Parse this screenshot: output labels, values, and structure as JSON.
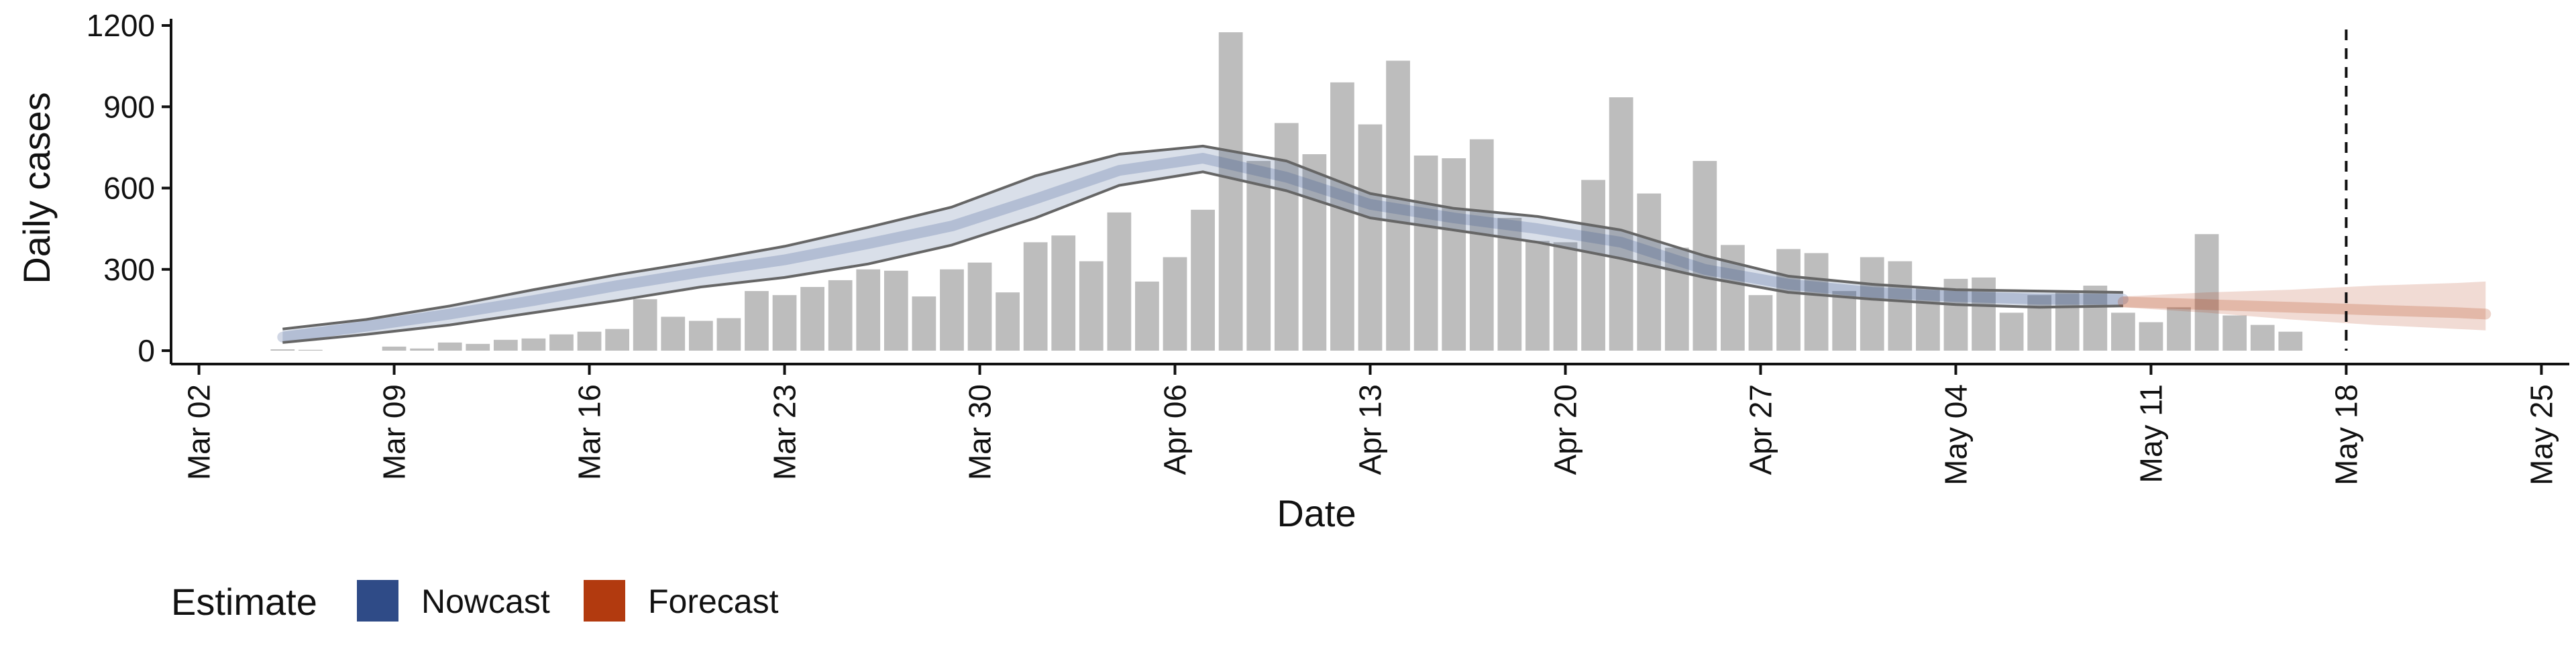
{
  "chart_data": {
    "type": "bar",
    "xlabel": "Date",
    "ylabel": "Daily cases",
    "ylim": [
      0,
      1200
    ],
    "yticks": [
      0,
      300,
      600,
      900,
      1200
    ],
    "xlim": [
      "2020-03-01",
      "2020-05-26"
    ],
    "xticks": [
      {
        "date": "2020-03-02",
        "label": "Mar 02"
      },
      {
        "date": "2020-03-09",
        "label": "Mar 09"
      },
      {
        "date": "2020-03-16",
        "label": "Mar 16"
      },
      {
        "date": "2020-03-23",
        "label": "Mar 23"
      },
      {
        "date": "2020-03-30",
        "label": "Mar 30"
      },
      {
        "date": "2020-04-06",
        "label": "Apr 06"
      },
      {
        "date": "2020-04-13",
        "label": "Apr 13"
      },
      {
        "date": "2020-04-20",
        "label": "Apr 20"
      },
      {
        "date": "2020-04-27",
        "label": "Apr 27"
      },
      {
        "date": "2020-05-04",
        "label": "May 04"
      },
      {
        "date": "2020-05-11",
        "label": "May 11"
      },
      {
        "date": "2020-05-18",
        "label": "May 18"
      },
      {
        "date": "2020-05-25",
        "label": "May 25"
      }
    ],
    "grid": false,
    "reference_line_date": "2020-05-18",
    "reported_cases": {
      "start_date": "2020-03-05",
      "values": [
        5,
        3,
        0,
        0,
        15,
        8,
        30,
        25,
        40,
        45,
        60,
        70,
        80,
        190,
        125,
        110,
        120,
        220,
        205,
        235,
        260,
        300,
        295,
        200,
        300,
        325,
        215,
        400,
        425,
        330,
        510,
        255,
        345,
        520,
        1175,
        700,
        840,
        725,
        990,
        835,
        1070,
        720,
        710,
        780,
        490,
        405,
        400,
        630,
        935,
        580,
        380,
        700,
        390,
        205,
        375,
        360,
        220,
        345,
        330,
        230,
        265,
        270,
        140,
        205,
        220,
        240,
        140,
        105,
        160,
        430,
        130,
        95,
        70
      ]
    },
    "series": [
      {
        "name": "Nowcast",
        "color": "#2f4b87",
        "dates": [
          "2020-03-05",
          "2020-03-08",
          "2020-03-11",
          "2020-03-14",
          "2020-03-17",
          "2020-03-20",
          "2020-03-23",
          "2020-03-26",
          "2020-03-29",
          "2020-04-01",
          "2020-04-04",
          "2020-04-07",
          "2020-04-10",
          "2020-04-13",
          "2020-04-16",
          "2020-04-19",
          "2020-04-22",
          "2020-04-25",
          "2020-04-28",
          "2020-05-01",
          "2020-05-04",
          "2020-05-07",
          "2020-05-10"
        ],
        "median": [
          50,
          90,
          135,
          185,
          240,
          290,
          335,
          395,
          460,
          560,
          665,
          710,
          640,
          540,
          490,
          450,
          400,
          300,
          245,
          215,
          200,
          190,
          190
        ],
        "lower_90": [
          30,
          60,
          95,
          140,
          185,
          235,
          270,
          320,
          390,
          490,
          610,
          660,
          590,
          490,
          445,
          400,
          340,
          270,
          215,
          190,
          170,
          160,
          165
        ],
        "upper_90": [
          80,
          115,
          165,
          225,
          280,
          330,
          385,
          455,
          530,
          645,
          725,
          755,
          700,
          580,
          525,
          495,
          445,
          350,
          275,
          245,
          225,
          220,
          215
        ]
      },
      {
        "name": "Forecast",
        "color": "#b23a0f",
        "dates": [
          "2020-05-10",
          "2020-05-13",
          "2020-05-16",
          "2020-05-19",
          "2020-05-22",
          "2020-05-23"
        ],
        "median": [
          180,
          170,
          160,
          150,
          140,
          135
        ],
        "lower_90": [
          160,
          140,
          115,
          95,
          80,
          75
        ],
        "upper_90": [
          200,
          215,
          225,
          240,
          250,
          255
        ]
      }
    ],
    "legend": {
      "title": "Estimate",
      "position": "bottom",
      "items": [
        {
          "label": "Nowcast",
          "color": "#2f4b87"
        },
        {
          "label": "Forecast",
          "color": "#b23a0f"
        }
      ]
    }
  }
}
